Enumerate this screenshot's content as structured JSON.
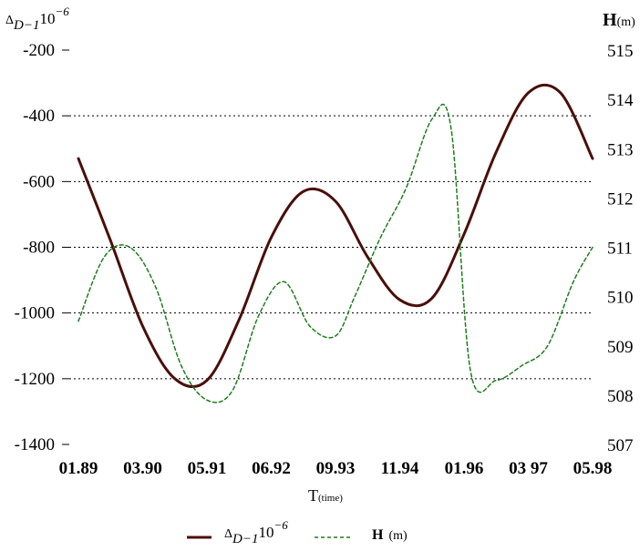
{
  "chart_data": {
    "type": "line",
    "left_axis": {
      "label_base": "Δ",
      "label_sub": "D−1",
      "label_tail": "10",
      "label_sup": "−6",
      "ticks": [
        "-200",
        "-400",
        "-600",
        "-800",
        "-1000",
        "-1200",
        "-1400"
      ],
      "ylim": [
        -1400,
        -200
      ]
    },
    "right_axis": {
      "label_main": "H",
      "label_unit": "(m)",
      "ticks": [
        "515",
        "514",
        "513",
        "512",
        "511",
        "510",
        "509",
        "508",
        "507"
      ],
      "ylim": [
        507,
        515
      ]
    },
    "x_axis": {
      "label_main": "T",
      "label_unit": "(time)",
      "ticks": [
        "01.89",
        "03.90",
        "05.91",
        "06.92",
        "09.93",
        "11.94",
        "01.96",
        "03 97",
        "05.98"
      ]
    },
    "grid": "horizontal dotted at -400, -600, -800, -1000, -1200",
    "legend": {
      "position": "bottom",
      "items": [
        {
          "base": "Δ",
          "sub": "D−1",
          "tail": "10",
          "sup": "−6",
          "style": "solid",
          "color": "#4a0f0a"
        },
        {
          "main": "H",
          "unit": "(m)",
          "style": "dashed",
          "color": "#1e7d1e"
        }
      ]
    },
    "series": [
      {
        "axis": "left",
        "style": "solid",
        "color": "#4a0f0a",
        "x": [
          0,
          0.5,
          1,
          1.5,
          2,
          2.5,
          3,
          3.5,
          4,
          4.5,
          5,
          5.5,
          6,
          6.5,
          7,
          7.5,
          8
        ],
        "values": [
          -530,
          -780,
          -1040,
          -1200,
          -1205,
          -1020,
          -770,
          -630,
          -660,
          -830,
          -960,
          -955,
          -760,
          -510,
          -330,
          -330,
          -530
        ]
      },
      {
        "axis": "right",
        "style": "dashed",
        "color": "#1e7d1e",
        "x": [
          0,
          0.4,
          0.8,
          1.2,
          1.6,
          2.0,
          2.4,
          2.8,
          3.2,
          3.6,
          4.0,
          4.3,
          4.7,
          5.1,
          5.5,
          5.8,
          6.1,
          6.5,
          6.9,
          7.3,
          7.7,
          8.0
        ],
        "values": [
          509.5,
          510.8,
          511.0,
          510.2,
          508.6,
          507.9,
          508.1,
          509.6,
          510.3,
          509.4,
          509.2,
          510.0,
          511.2,
          512.2,
          513.6,
          513.4,
          508.5,
          508.3,
          508.6,
          509.0,
          510.3,
          511.0
        ]
      }
    ]
  }
}
